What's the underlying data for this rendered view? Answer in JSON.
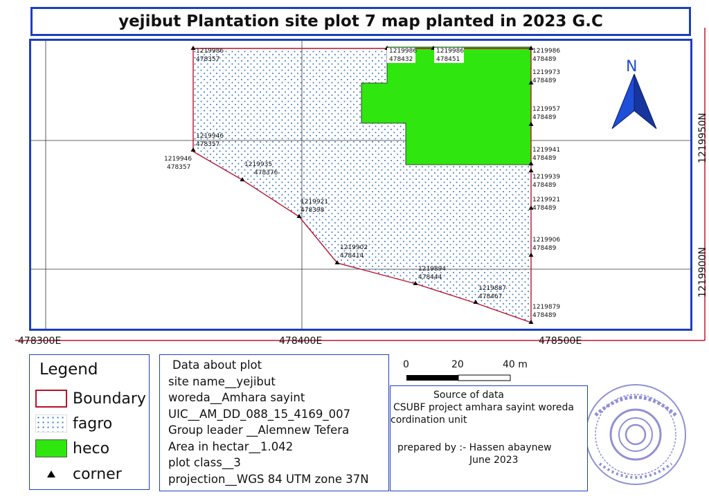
{
  "title": "yejibut Plantation site plot 7 map planted in 2023 G.C",
  "map": {
    "x_tick_labels": [
      "478300E",
      "478400E",
      "478500E"
    ],
    "y_tick_labels": [
      "1219950N",
      "1219900N"
    ],
    "north_label": "N",
    "corner_labels": [
      {
        "n": "1219986",
        "e": "478357"
      },
      {
        "n": "1219986",
        "e": "478432"
      },
      {
        "n": "1219986",
        "e": "478451"
      },
      {
        "n": "1219986",
        "e": "478489"
      },
      {
        "n": "1219973",
        "e": "478489"
      },
      {
        "n": "1219957",
        "e": "478489"
      },
      {
        "n": "1219946",
        "e": "478357"
      },
      {
        "n": "1219946",
        "e": "478357"
      },
      {
        "n": "1219941",
        "e": "478489"
      },
      {
        "n": "1219939",
        "e": "478489"
      },
      {
        "n": "1219935",
        "e": "478376"
      },
      {
        "n": "1219921",
        "e": "478489"
      },
      {
        "n": "1219921",
        "e": "478398"
      },
      {
        "n": "1219906",
        "e": "478489"
      },
      {
        "n": "1219902",
        "e": "478414"
      },
      {
        "n": "1219894",
        "e": "478444"
      },
      {
        "n": "1219887",
        "e": "478467"
      },
      {
        "n": "1219879",
        "e": "478489"
      }
    ],
    "colors": {
      "boundary": "#b8122a",
      "heco": "#2fe60f",
      "fagro_dots": "#3a78c2",
      "frame": "#1b3fbd"
    }
  },
  "legend": {
    "title": "Legend",
    "items": [
      {
        "label": "Boundary",
        "symbol": "boundary"
      },
      {
        "label": "fagro",
        "symbol": "dotted-blue"
      },
      {
        "label": "heco",
        "symbol": "green-fill"
      },
      {
        "label": "corner",
        "symbol": "triangle"
      }
    ]
  },
  "plot_info": {
    "heading": "Data about plot",
    "lines": [
      "site name__yejibut",
      "woreda__Amhara sayint",
      "UIC__AM_DD_088_15_4169_007",
      "Group leader __Alemnew Tefera",
      "Area in hectar__1.042",
      "plot class__3",
      "projection__WGS 84 UTM zone 37N"
    ]
  },
  "scale_bar": {
    "labels": [
      "0",
      "20",
      "40 m"
    ]
  },
  "source": {
    "heading": "Source of data",
    "lines": [
      "CSUBF project amhara sayint woreda",
      "cordination unit"
    ],
    "prepared": "prepared by :- Hassen abaynew",
    "date": "June 2023"
  },
  "stamp": {
    "text": "ሰቆጣ ቃል ኪዳን ፕሮጀክት"
  }
}
